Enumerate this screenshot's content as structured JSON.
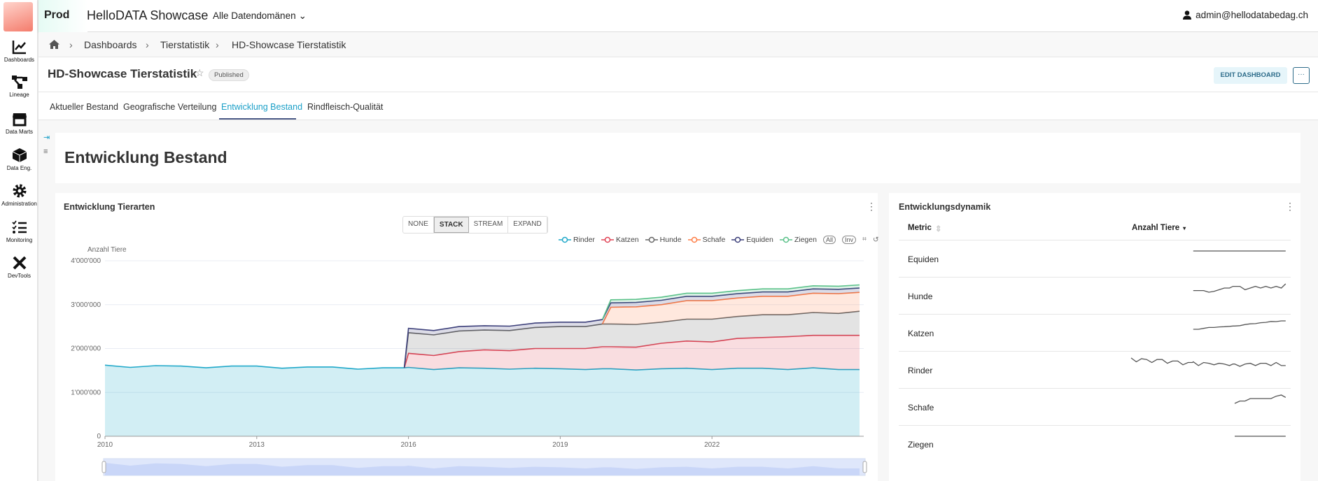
{
  "app": {
    "env": "Prod",
    "title": "HelloDATA Showcase",
    "domain_select": "Alle Datendomänen",
    "user": "admin@hellodatabedag.ch"
  },
  "sidebar": {
    "items": [
      {
        "label": "Dashboards",
        "icon": "chart-line-icon"
      },
      {
        "label": "Lineage",
        "icon": "lineage-icon"
      },
      {
        "label": "Data Marts",
        "icon": "store-icon"
      },
      {
        "label": "Data Eng.",
        "icon": "cube-icon"
      },
      {
        "label": "Administration",
        "icon": "gear-icon"
      },
      {
        "label": "Monitoring",
        "icon": "checklist-icon"
      },
      {
        "label": "DevTools",
        "icon": "tools-icon"
      }
    ]
  },
  "breadcrumb": [
    "Dashboards",
    "Tierstatistik",
    "HD-Showcase Tierstatistik"
  ],
  "dashboard": {
    "title": "HD-Showcase Tierstatistik",
    "status": "Published",
    "edit_label": "EDIT DASHBOARD",
    "more_label": "···"
  },
  "tabs": [
    {
      "label": "Aktueller Bestand"
    },
    {
      "label": "Geografische Verteilung"
    },
    {
      "label": "Entwicklung Bestand",
      "active": true
    },
    {
      "label": "Rindfleisch-Qualität"
    }
  ],
  "header_card": {
    "title": "Entwicklung Bestand"
  },
  "chart_panel": {
    "title": "Entwicklung Tierarten",
    "modes": [
      "NONE",
      "STACK",
      "STREAM",
      "EXPAND"
    ],
    "active_mode": "STACK",
    "legend_all": "All",
    "legend_inv": "Inv"
  },
  "chart_data": {
    "type": "area",
    "stacked": true,
    "ylabel": "Anzahl Tiere",
    "ylim": [
      0,
      4000000
    ],
    "yticks": [
      "0",
      "1'000'000",
      "2'000'000",
      "3'000'000",
      "4'000'000"
    ],
    "xticks": [
      "2010",
      "2013",
      "2016",
      "2019",
      "2022"
    ],
    "xlim": [
      "2010-01",
      "2025-01"
    ],
    "grid": true,
    "legend": "top-right",
    "x": [
      "2010-01",
      "2010-07",
      "2011-01",
      "2011-07",
      "2012-01",
      "2012-07",
      "2013-01",
      "2013-07",
      "2014-01",
      "2014-07",
      "2015-01",
      "2015-07",
      "2015-12",
      "2016-01",
      "2016-07",
      "2017-01",
      "2017-07",
      "2018-01",
      "2018-07",
      "2019-01",
      "2019-07",
      "2019-11",
      "2020-01",
      "2020-07",
      "2021-01",
      "2021-07",
      "2022-01",
      "2022-07",
      "2023-01",
      "2023-07",
      "2024-01",
      "2024-07",
      "2024-12"
    ],
    "series": [
      {
        "name": "Rinder",
        "color": "#1fa8c9",
        "values": [
          1620000,
          1570000,
          1610000,
          1600000,
          1560000,
          1600000,
          1600000,
          1550000,
          1580000,
          1580000,
          1530000,
          1560000,
          1560000,
          1570000,
          1520000,
          1560000,
          1550000,
          1530000,
          1550000,
          1540000,
          1520000,
          1540000,
          1540000,
          1510000,
          1540000,
          1550000,
          1520000,
          1550000,
          1550000,
          1520000,
          1560000,
          1520000,
          1520000
        ]
      },
      {
        "name": "Katzen",
        "color": "#e04355",
        "values": [
          0,
          0,
          0,
          0,
          0,
          0,
          0,
          0,
          0,
          0,
          0,
          0,
          0,
          320000,
          320000,
          370000,
          420000,
          420000,
          450000,
          460000,
          480000,
          500000,
          500000,
          520000,
          580000,
          620000,
          630000,
          680000,
          700000,
          750000,
          740000,
          780000,
          780000
        ]
      },
      {
        "name": "Hunde",
        "color": "#666666",
        "values": [
          0,
          0,
          0,
          0,
          0,
          0,
          0,
          0,
          0,
          0,
          0,
          0,
          0,
          470000,
          470000,
          470000,
          450000,
          460000,
          480000,
          500000,
          500000,
          520000,
          520000,
          520000,
          480000,
          500000,
          520000,
          500000,
          520000,
          500000,
          520000,
          500000,
          550000
        ]
      },
      {
        "name": "Schafe",
        "color": "#fe7e47",
        "values": [
          0,
          0,
          0,
          0,
          0,
          0,
          0,
          0,
          0,
          0,
          0,
          0,
          0,
          0,
          0,
          0,
          0,
          0,
          0,
          0,
          0,
          0,
          380000,
          400000,
          400000,
          420000,
          420000,
          420000,
          420000,
          420000,
          440000,
          450000,
          430000
        ]
      },
      {
        "name": "Equiden",
        "color": "#3c3f7a",
        "values": [
          0,
          0,
          0,
          0,
          0,
          0,
          0,
          0,
          0,
          0,
          0,
          0,
          0,
          100000,
          100000,
          100000,
          100000,
          100000,
          100000,
          100000,
          100000,
          100000,
          100000,
          100000,
          100000,
          100000,
          100000,
          100000,
          100000,
          100000,
          100000,
          100000,
          100000
        ]
      },
      {
        "name": "Ziegen",
        "color": "#5ac189",
        "values": [
          0,
          0,
          0,
          0,
          0,
          0,
          0,
          0,
          0,
          0,
          0,
          0,
          0,
          0,
          0,
          0,
          0,
          0,
          0,
          0,
          0,
          0,
          70000,
          70000,
          70000,
          70000,
          70000,
          70000,
          70000,
          70000,
          70000,
          70000,
          70000
        ]
      }
    ]
  },
  "table_panel": {
    "title": "Entwicklungsdynamik",
    "columns": [
      "Metric",
      "Anzahl Tiere"
    ],
    "rows": [
      "Equiden",
      "Hunde",
      "Katzen",
      "Rinder",
      "Schafe",
      "Ziegen"
    ]
  }
}
